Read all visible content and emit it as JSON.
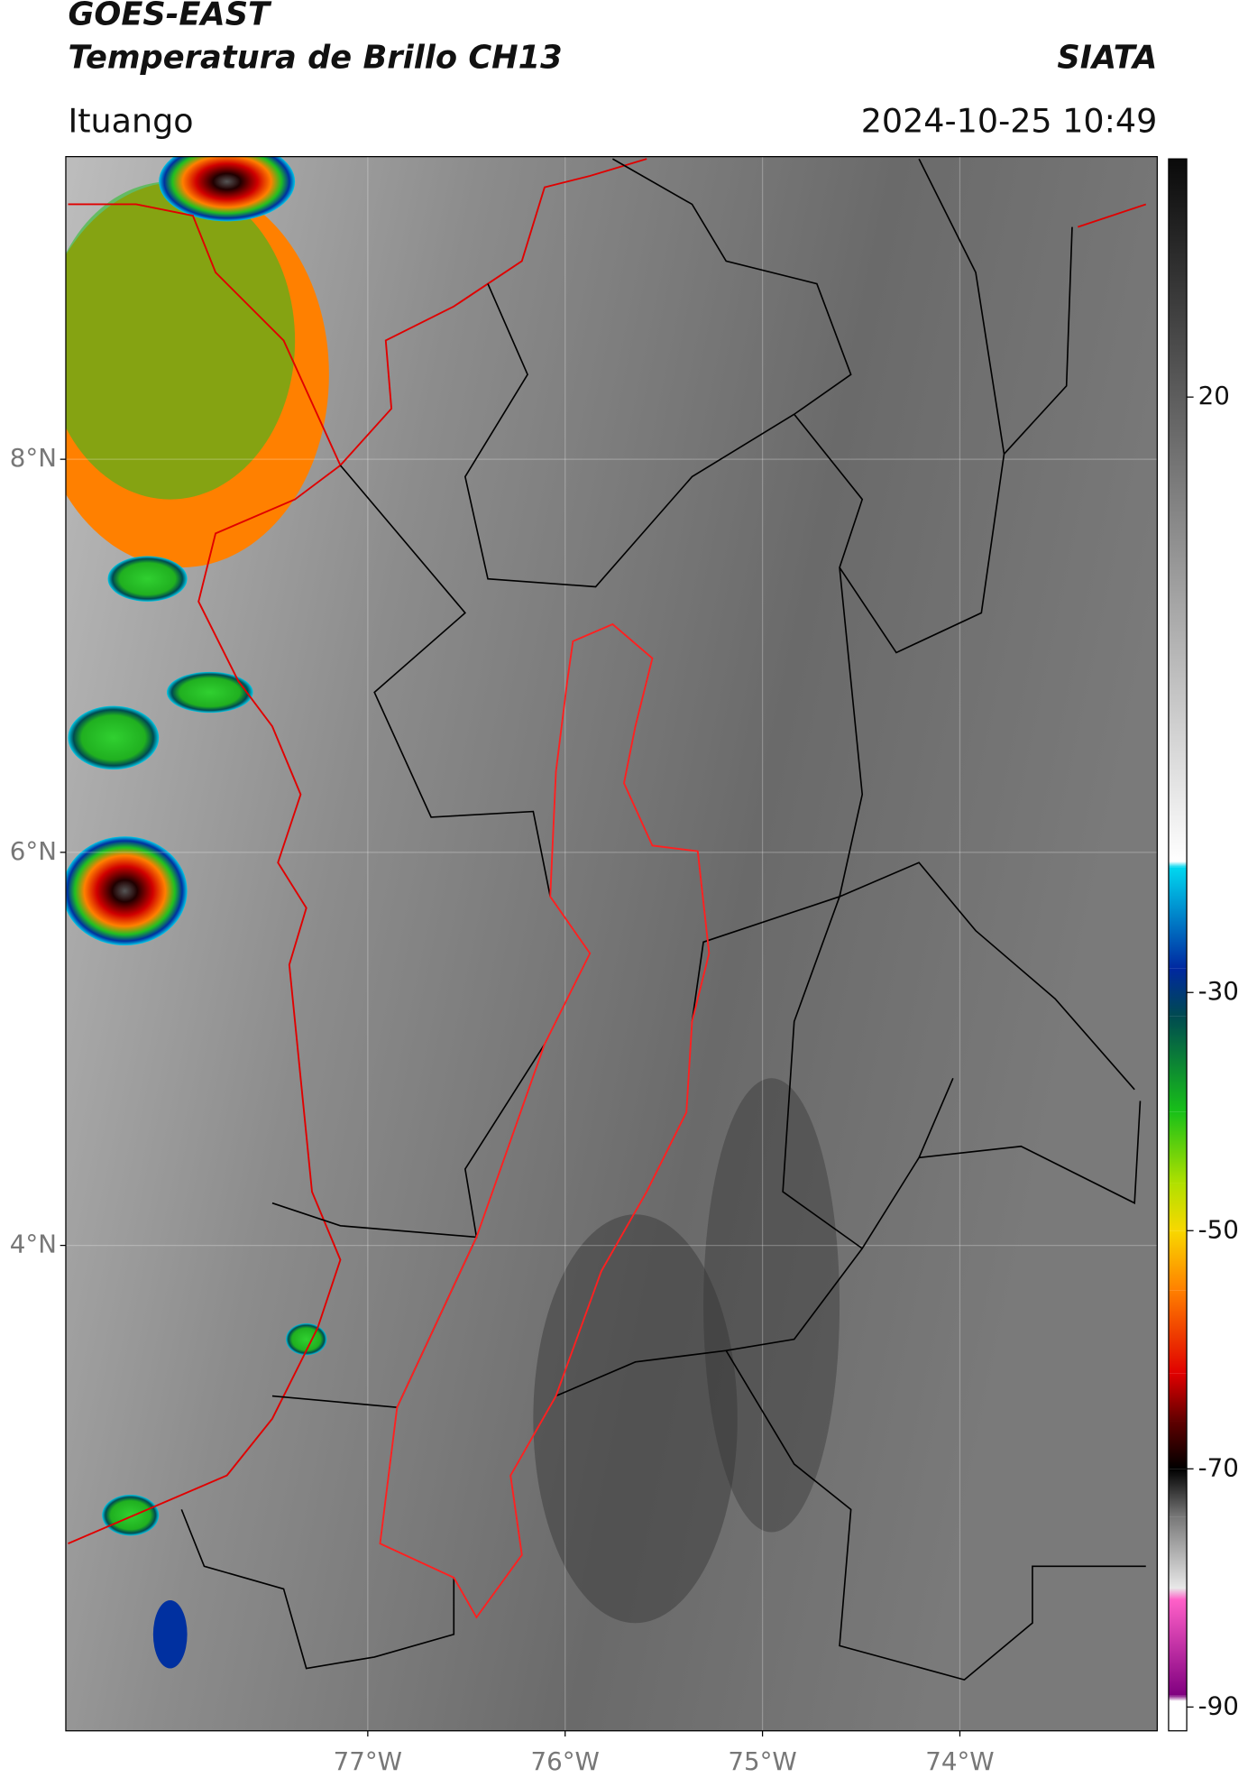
{
  "header": {
    "satellite": "GOES-EAST",
    "product": "Temperatura de Brillo CH13",
    "agency": "SIATA",
    "region": "Ituango",
    "timestamp": "2024-10-25 10:49"
  },
  "map": {
    "xlim": [
      -78.53,
      -73.0
    ],
    "ylim": [
      1.53,
      9.54
    ],
    "xticks": [
      {
        "value": -77,
        "label": "77°W"
      },
      {
        "value": -76,
        "label": "76°W"
      },
      {
        "value": -75,
        "label": "75°W"
      },
      {
        "value": -74,
        "label": "74°W"
      }
    ],
    "yticks": [
      {
        "value": 8,
        "label": "8°N"
      },
      {
        "value": 6,
        "label": "6°N"
      },
      {
        "value": 4,
        "label": "4°N"
      }
    ],
    "grid": true
  },
  "colorbar": {
    "ylim": [
      -92,
      40
    ],
    "yticks": [
      20,
      -30,
      -50,
      -70,
      -90
    ],
    "colormap": [
      {
        "value": 40,
        "color": "#0a0a0a"
      },
      {
        "value": -19,
        "color": "#ffffff"
      },
      {
        "value": -19.5,
        "color": "#00d8f0"
      },
      {
        "value": -28,
        "color": "#0028a0"
      },
      {
        "value": -32,
        "color": "#004a50"
      },
      {
        "value": -40,
        "color": "#18c018"
      },
      {
        "value": -46,
        "color": "#b0e000"
      },
      {
        "value": -50,
        "color": "#f8d800"
      },
      {
        "value": -55,
        "color": "#ff8000"
      },
      {
        "value": -62,
        "color": "#e00000"
      },
      {
        "value": -66,
        "color": "#600000"
      },
      {
        "value": -70,
        "color": "#000000"
      },
      {
        "value": -74,
        "color": "#777777"
      },
      {
        "value": -80,
        "color": "#e8e8e8"
      },
      {
        "value": -81,
        "color": "#ff60c8"
      },
      {
        "value": -89,
        "color": "#800080"
      },
      {
        "value": -89.5,
        "color": "#ffffff"
      },
      {
        "value": -92,
        "color": "#ffffff"
      }
    ]
  }
}
